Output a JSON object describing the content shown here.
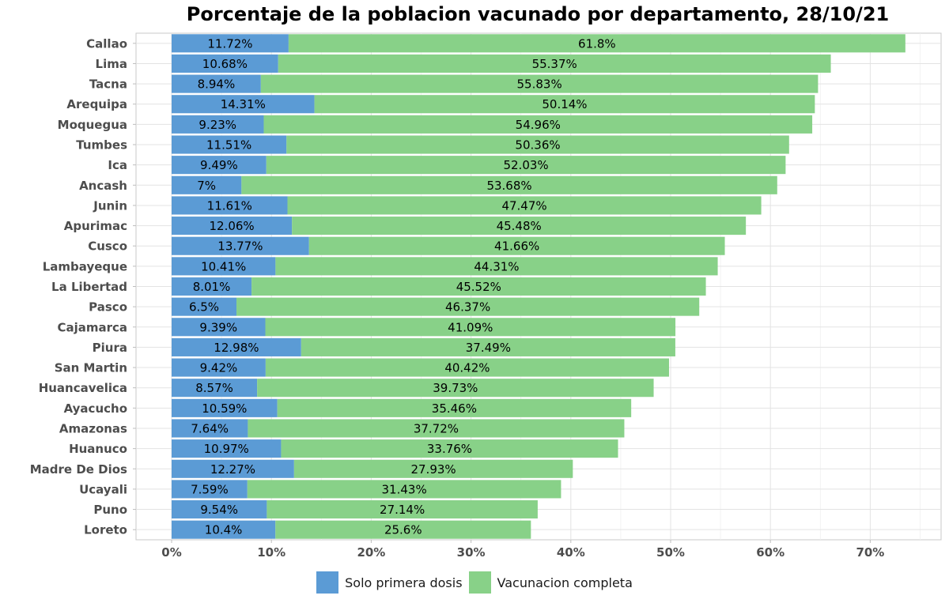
{
  "chart_data": {
    "type": "bar",
    "orientation": "horizontal",
    "stacked": true,
    "title": "Porcentaje de la poblacion vacunado por departamento, 28/10/21",
    "xlabel": "",
    "ylabel": "",
    "xlim": [
      0,
      77.5
    ],
    "x_ticks": [
      "0%",
      "10%",
      "20%",
      "30%",
      "40%",
      "50%",
      "60%",
      "70%"
    ],
    "grid": true,
    "legend_position": "bottom",
    "categories": [
      "Callao",
      "Lima",
      "Tacna",
      "Arequipa",
      "Moquegua",
      "Tumbes",
      "Ica",
      "Ancash",
      "Junin",
      "Apurimac",
      "Cusco",
      "Lambayeque",
      "La Libertad",
      "Pasco",
      "Cajamarca",
      "Piura",
      "San Martin",
      "Huancavelica",
      "Ayacucho",
      "Amazonas",
      "Huanuco",
      "Madre De Dios",
      "Ucayali",
      "Puno",
      "Loreto"
    ],
    "series": [
      {
        "name": "Solo primera dosis",
        "color": "#5b9bd5",
        "values": [
          11.72,
          10.68,
          8.94,
          14.31,
          9.23,
          11.51,
          9.49,
          7,
          11.61,
          12.06,
          13.77,
          10.41,
          8.01,
          6.5,
          9.39,
          12.98,
          9.42,
          8.57,
          10.59,
          7.64,
          10.97,
          12.27,
          7.59,
          9.54,
          10.4
        ],
        "labels": [
          "11.72%",
          "10.68%",
          "8.94%",
          "14.31%",
          "9.23%",
          "11.51%",
          "9.49%",
          "7%",
          "11.61%",
          "12.06%",
          "13.77%",
          "10.41%",
          "8.01%",
          "6.5%",
          "9.39%",
          "12.98%",
          "9.42%",
          "8.57%",
          "10.59%",
          "7.64%",
          "10.97%",
          "12.27%",
          "7.59%",
          "9.54%",
          "10.4%"
        ]
      },
      {
        "name": "Vacunacion completa",
        "color": "#88d188",
        "values": [
          61.8,
          55.37,
          55.83,
          50.14,
          54.96,
          50.36,
          52.03,
          53.68,
          47.47,
          45.48,
          41.66,
          44.31,
          45.52,
          46.37,
          41.09,
          37.49,
          40.42,
          39.73,
          35.46,
          37.72,
          33.76,
          27.93,
          31.43,
          27.14,
          25.6
        ],
        "labels": [
          "61.8%",
          "55.37%",
          "55.83%",
          "50.14%",
          "54.96%",
          "50.36%",
          "52.03%",
          "53.68%",
          "47.47%",
          "45.48%",
          "41.66%",
          "44.31%",
          "45.52%",
          "46.37%",
          "41.09%",
          "37.49%",
          "40.42%",
          "39.73%",
          "35.46%",
          "37.72%",
          "33.76%",
          "27.93%",
          "31.43%",
          "27.14%",
          "25.6%"
        ]
      }
    ]
  }
}
